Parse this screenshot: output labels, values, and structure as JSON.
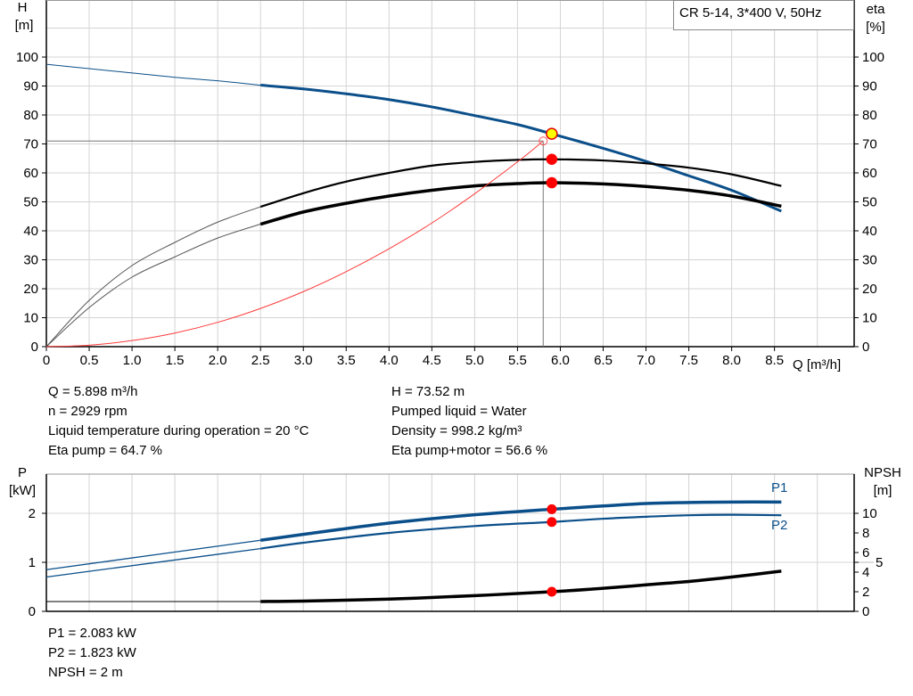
{
  "chart_data": [
    {
      "type": "line",
      "title": "CR 5-14, 3*400 V, 50Hz",
      "xlabel": "Q [m³/h]",
      "ylabel_left": [
        "H",
        "[m]"
      ],
      "ylabel_right": [
        "eta",
        "[%]"
      ],
      "xlim": [
        0,
        9.43
      ],
      "ylim": [
        0,
        119.7
      ],
      "x_ticks": [
        0,
        0.5,
        1.0,
        1.5,
        2.0,
        2.5,
        3.0,
        3.5,
        4.0,
        4.5,
        5.0,
        5.5,
        6.0,
        6.5,
        7.0,
        7.5,
        8.0,
        8.5
      ],
      "y_ticks": [
        0,
        10,
        20,
        30,
        40,
        50,
        60,
        70,
        80,
        90,
        100
      ],
      "grid": true,
      "operating_range_start": 2.5,
      "series": [
        {
          "key": "H",
          "axis": "H [m]",
          "color": "#0b4f8a",
          "width": 3,
          "x": [
            0,
            0.5,
            1.0,
            1.5,
            2.0,
            2.5,
            3.0,
            3.5,
            4.0,
            4.5,
            5.0,
            5.5,
            5.9,
            6.5,
            7.0,
            7.5,
            8.0,
            8.58
          ],
          "y": [
            97.5,
            96,
            94.5,
            93,
            91.8,
            90.3,
            89,
            87.3,
            85.3,
            82.8,
            79.8,
            76.7,
            73.5,
            68.5,
            64,
            59,
            54,
            46.8
          ]
        },
        {
          "key": "eta_pump",
          "axis": "eta [%]",
          "color": "#000000",
          "width": 2.2,
          "x": [
            0,
            0.5,
            1.0,
            1.5,
            2.0,
            2.5,
            3.0,
            3.5,
            4.0,
            4.5,
            5.0,
            5.5,
            5.9,
            6.5,
            7.0,
            7.5,
            8.0,
            8.58
          ],
          "y": [
            0,
            16,
            28,
            36,
            43,
            48.3,
            53,
            57,
            60,
            62.5,
            63.8,
            64.5,
            64.7,
            64.3,
            63.3,
            61.8,
            59.5,
            55.5
          ]
        },
        {
          "key": "eta_pump_motor",
          "axis": "eta [%]",
          "color": "#000000",
          "width": 3.5,
          "x": [
            0,
            0.5,
            1.0,
            1.5,
            2.0,
            2.5,
            3.0,
            3.5,
            4.0,
            4.5,
            5.0,
            5.5,
            5.9,
            6.5,
            7.0,
            7.5,
            8.0,
            8.58
          ],
          "y": [
            0,
            13.5,
            24,
            31,
            37.5,
            42.3,
            46.5,
            49.5,
            52,
            54,
            55.5,
            56.3,
            56.6,
            56.2,
            55.3,
            54,
            52,
            48.5
          ]
        },
        {
          "key": "system_curve",
          "axis": "H [m]",
          "color": "#ff3b3b",
          "width": 1,
          "thin_only": true,
          "x": [
            0,
            0.5,
            1.0,
            1.5,
            2.0,
            2.5,
            3.0,
            3.5,
            4.0,
            4.5,
            5.0,
            5.5,
            5.8
          ],
          "y": [
            0,
            0.5,
            2.1,
            4.7,
            8.4,
            13.2,
            19,
            25.9,
            33.8,
            42.7,
            52.8,
            63.8,
            71
          ]
        }
      ],
      "duty_point": {
        "Q": 5.8,
        "H": 71
      },
      "operating_points": [
        {
          "Q": 5.9,
          "value": 73.5,
          "fill": "#ffff00",
          "stroke": "#e00000"
        },
        {
          "Q": 5.9,
          "value": 64.7,
          "fill": "#ff0000",
          "stroke": "#ff0000"
        },
        {
          "Q": 5.9,
          "value": 56.6,
          "fill": "#ff0000",
          "stroke": "#ff0000"
        }
      ]
    },
    {
      "type": "line",
      "ylabel_left": [
        "P",
        "[kW]"
      ],
      "ylabel_right": [
        "NPSH",
        "[m]"
      ],
      "xlim": [
        0,
        9.43
      ],
      "ylim_left": [
        0,
        2.8
      ],
      "ylim_right": [
        0,
        14
      ],
      "y_ticks_left": [
        0,
        1,
        2
      ],
      "y_ticks_right": [
        0,
        2,
        4,
        5,
        6,
        8,
        10
      ],
      "grid": true,
      "operating_range_start": 2.5,
      "series": [
        {
          "key": "P1",
          "name": "P1",
          "axis": "left",
          "color": "#0b4f8a",
          "width": 3.5,
          "x": [
            0,
            2.5,
            3.0,
            4.0,
            5.0,
            5.9,
            6.5,
            7.0,
            7.5,
            8.0,
            8.58
          ],
          "y": [
            0.85,
            1.45,
            1.57,
            1.8,
            1.97,
            2.083,
            2.15,
            2.2,
            2.22,
            2.23,
            2.23
          ]
        },
        {
          "key": "P2",
          "name": "P2",
          "axis": "left",
          "color": "#0b4f8a",
          "width": 2.2,
          "x": [
            0,
            2.5,
            3.0,
            4.0,
            5.0,
            5.9,
            6.5,
            7.0,
            7.5,
            8.0,
            8.58
          ],
          "y": [
            0.7,
            1.28,
            1.4,
            1.6,
            1.74,
            1.823,
            1.89,
            1.93,
            1.96,
            1.97,
            1.96
          ]
        },
        {
          "key": "NPSH",
          "axis": "right",
          "color": "#000000",
          "width": 3.5,
          "x": [
            0,
            2.5,
            3.0,
            4.0,
            5.0,
            5.9,
            6.5,
            7.0,
            7.5,
            8.0,
            8.58
          ],
          "y": [
            1,
            1,
            1.05,
            1.25,
            1.6,
            2,
            2.35,
            2.7,
            3.05,
            3.5,
            4.1
          ]
        }
      ],
      "operating_points": [
        {
          "Q": 5.9,
          "series": "P1",
          "value": 2.083
        },
        {
          "Q": 5.9,
          "series": "P2",
          "value": 1.823
        },
        {
          "Q": 5.9,
          "series": "NPSH",
          "value": 2
        }
      ]
    }
  ],
  "info": {
    "left": [
      "Q = 5.898 m³/h",
      "n = 2929 rpm",
      "Liquid temperature during operation = 20 °C",
      "Eta pump = 64.7 %"
    ],
    "right": [
      "H = 73.52 m",
      "Pumped liquid = Water",
      "Density = 998.2 kg/m³",
      "Eta pump+motor = 56.6 %"
    ],
    "bottom": [
      "P1 = 2.083 kW",
      "P2 = 1.823 kW",
      "NPSH = 2 m"
    ]
  }
}
